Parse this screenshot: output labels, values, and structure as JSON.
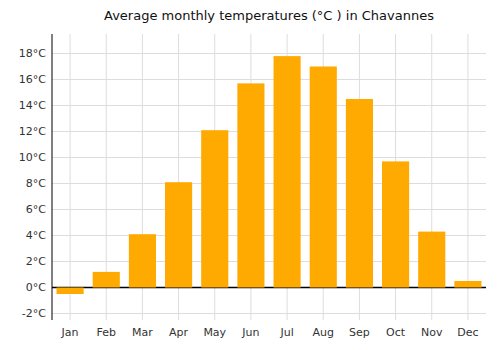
{
  "chart_data": {
    "type": "bar",
    "title": "Average monthly temperatures (°C ) in Chavannes",
    "categories": [
      "Jan",
      "Feb",
      "Mar",
      "Apr",
      "May",
      "Jun",
      "Jul",
      "Aug",
      "Sep",
      "Oct",
      "Nov",
      "Dec"
    ],
    "values": [
      -0.5,
      1.2,
      4.1,
      8.1,
      12.1,
      15.7,
      17.8,
      17.0,
      14.5,
      9.7,
      4.3,
      0.5
    ],
    "color": "#FFAA00",
    "ylim": [
      -2.5,
      19.5
    ],
    "yticks": [
      {
        "value": -2,
        "label": "-2°C"
      },
      {
        "value": 0,
        "label": "0°C"
      },
      {
        "value": 2,
        "label": "2°C"
      },
      {
        "value": 4,
        "label": "4°C"
      },
      {
        "value": 6,
        "label": "6°C"
      },
      {
        "value": 8,
        "label": "8°C"
      },
      {
        "value": 10,
        "label": "10°C"
      },
      {
        "value": 12,
        "label": "12°C"
      },
      {
        "value": 14,
        "label": "14°C"
      },
      {
        "value": 16,
        "label": "16°C"
      },
      {
        "value": 18,
        "label": "18°C"
      }
    ],
    "grid": true
  }
}
